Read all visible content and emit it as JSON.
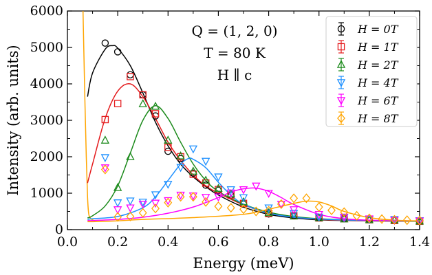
{
  "chart_data": {
    "type": "scatter",
    "title": "",
    "xlabel": "Energy (meV)",
    "ylabel": "Intensity (arb. units)",
    "xlim": [
      0.0,
      1.4
    ],
    "ylim": [
      0,
      6000
    ],
    "x_ticks": [
      0.0,
      0.2,
      0.4,
      0.6,
      0.8,
      1.0,
      1.2,
      1.4
    ],
    "x_tick_labels": [
      "0.0",
      "0.2",
      "0.4",
      "0.6",
      "0.8",
      "1.0",
      "1.2",
      "1.4"
    ],
    "y_ticks": [
      0,
      1000,
      2000,
      3000,
      4000,
      5000,
      6000
    ],
    "y_tick_labels": [
      "0",
      "1000",
      "2000",
      "3000",
      "4000",
      "5000",
      "6000"
    ],
    "grid": false,
    "legend_position": "top-right",
    "annotations": [
      "Q = (1, 2, 0)",
      "T = 80 K",
      "H ∥ c"
    ],
    "series": [
      {
        "name": "H = 0T",
        "color": "#000000",
        "marker": "circle",
        "points": [
          [
            0.15,
            5120
          ],
          [
            0.2,
            4880
          ],
          [
            0.25,
            4250
          ],
          [
            0.3,
            3700
          ],
          [
            0.35,
            3120
          ],
          [
            0.4,
            2150
          ],
          [
            0.45,
            1950
          ],
          [
            0.5,
            1550
          ],
          [
            0.55,
            1220
          ],
          [
            0.6,
            1080
          ],
          [
            0.65,
            950
          ],
          [
            0.7,
            700
          ],
          [
            0.8,
            430
          ],
          [
            0.9,
            380
          ],
          [
            1.0,
            330
          ],
          [
            1.1,
            300
          ],
          [
            1.2,
            280
          ],
          [
            1.3,
            250
          ],
          [
            1.4,
            230
          ]
        ],
        "fit": [
          [
            0.08,
            3650
          ],
          [
            0.1,
            4300
          ],
          [
            0.15,
            4950
          ],
          [
            0.18,
            5050
          ],
          [
            0.2,
            4980
          ],
          [
            0.25,
            4500
          ],
          [
            0.3,
            3750
          ],
          [
            0.35,
            2950
          ],
          [
            0.4,
            2300
          ],
          [
            0.45,
            1800
          ],
          [
            0.5,
            1450
          ],
          [
            0.55,
            1180
          ],
          [
            0.6,
            950
          ],
          [
            0.7,
            620
          ],
          [
            0.8,
            420
          ],
          [
            0.9,
            320
          ],
          [
            1.0,
            270
          ],
          [
            1.2,
            240
          ],
          [
            1.4,
            230
          ]
        ]
      },
      {
        "name": "H = 1T",
        "color": "#e41a1c",
        "marker": "square",
        "points": [
          [
            0.15,
            3020
          ],
          [
            0.2,
            3460
          ],
          [
            0.25,
            4200
          ],
          [
            0.3,
            3700
          ],
          [
            0.35,
            3180
          ],
          [
            0.4,
            2260
          ],
          [
            0.45,
            2000
          ],
          [
            0.5,
            1520
          ],
          [
            0.55,
            1280
          ],
          [
            0.6,
            1100
          ],
          [
            0.65,
            950
          ],
          [
            0.7,
            720
          ],
          [
            0.8,
            440
          ],
          [
            0.9,
            380
          ],
          [
            1.0,
            320
          ],
          [
            1.1,
            300
          ],
          [
            1.2,
            270
          ],
          [
            1.3,
            250
          ],
          [
            1.4,
            230
          ]
        ],
        "fit": [
          [
            0.08,
            1280
          ],
          [
            0.1,
            1800
          ],
          [
            0.15,
            3050
          ],
          [
            0.2,
            3800
          ],
          [
            0.25,
            4000
          ],
          [
            0.3,
            3650
          ],
          [
            0.35,
            3050
          ],
          [
            0.4,
            2400
          ],
          [
            0.45,
            1900
          ],
          [
            0.5,
            1500
          ],
          [
            0.55,
            1200
          ],
          [
            0.6,
            1000
          ],
          [
            0.7,
            680
          ],
          [
            0.8,
            450
          ],
          [
            0.9,
            340
          ],
          [
            1.0,
            280
          ],
          [
            1.2,
            240
          ],
          [
            1.4,
            230
          ]
        ]
      },
      {
        "name": "H = 2T",
        "color": "#1b8a1b",
        "marker": "triangle-up",
        "points": [
          [
            0.15,
            2450
          ],
          [
            0.2,
            1150
          ],
          [
            0.25,
            2000
          ],
          [
            0.3,
            3450
          ],
          [
            0.35,
            3380
          ],
          [
            0.4,
            2450
          ],
          [
            0.45,
            2020
          ],
          [
            0.5,
            1600
          ],
          [
            0.55,
            1350
          ],
          [
            0.6,
            1130
          ],
          [
            0.65,
            980
          ],
          [
            0.7,
            760
          ],
          [
            0.8,
            460
          ],
          [
            0.9,
            370
          ],
          [
            1.0,
            320
          ],
          [
            1.1,
            290
          ],
          [
            1.2,
            270
          ],
          [
            1.3,
            260
          ],
          [
            1.4,
            230
          ]
        ],
        "fit": [
          [
            0.08,
            320
          ],
          [
            0.1,
            380
          ],
          [
            0.15,
            650
          ],
          [
            0.2,
            1200
          ],
          [
            0.25,
            2100
          ],
          [
            0.3,
            3000
          ],
          [
            0.35,
            3400
          ],
          [
            0.4,
            3050
          ],
          [
            0.45,
            2400
          ],
          [
            0.5,
            1800
          ],
          [
            0.55,
            1350
          ],
          [
            0.6,
            1050
          ],
          [
            0.7,
            700
          ],
          [
            0.8,
            480
          ],
          [
            0.9,
            360
          ],
          [
            1.0,
            300
          ],
          [
            1.2,
            250
          ],
          [
            1.4,
            230
          ]
        ]
      },
      {
        "name": "H = 4T",
        "color": "#1e90ff",
        "marker": "triangle-down",
        "points": [
          [
            0.15,
            1980
          ],
          [
            0.2,
            740
          ],
          [
            0.25,
            790
          ],
          [
            0.3,
            760
          ],
          [
            0.35,
            960
          ],
          [
            0.4,
            1250
          ],
          [
            0.45,
            1710
          ],
          [
            0.5,
            2220
          ],
          [
            0.55,
            1880
          ],
          [
            0.6,
            1450
          ],
          [
            0.65,
            1100
          ],
          [
            0.7,
            880
          ],
          [
            0.8,
            600
          ],
          [
            0.9,
            450
          ],
          [
            1.0,
            350
          ],
          [
            1.1,
            330
          ],
          [
            1.2,
            280
          ],
          [
            1.3,
            280
          ],
          [
            1.4,
            250
          ]
        ],
        "fit": [
          [
            0.08,
            280
          ],
          [
            0.1,
            300
          ],
          [
            0.2,
            360
          ],
          [
            0.3,
            600
          ],
          [
            0.35,
            900
          ],
          [
            0.4,
            1350
          ],
          [
            0.45,
            1800
          ],
          [
            0.48,
            1950
          ],
          [
            0.5,
            1930
          ],
          [
            0.55,
            1700
          ],
          [
            0.6,
            1300
          ],
          [
            0.65,
            950
          ],
          [
            0.7,
            700
          ],
          [
            0.8,
            450
          ],
          [
            0.9,
            340
          ],
          [
            1.0,
            290
          ],
          [
            1.2,
            250
          ],
          [
            1.4,
            240
          ]
        ]
      },
      {
        "name": "H = 6T",
        "color": "#ff00ff",
        "marker": "triangle-down",
        "points": [
          [
            0.15,
            1700
          ],
          [
            0.2,
            550
          ],
          [
            0.25,
            600
          ],
          [
            0.3,
            700
          ],
          [
            0.35,
            730
          ],
          [
            0.4,
            800
          ],
          [
            0.45,
            950
          ],
          [
            0.5,
            930
          ],
          [
            0.55,
            890
          ],
          [
            0.6,
            900
          ],
          [
            0.65,
            1010
          ],
          [
            0.7,
            1100
          ],
          [
            0.75,
            1200
          ],
          [
            0.8,
            1000
          ],
          [
            0.85,
            700
          ],
          [
            0.9,
            550
          ],
          [
            1.0,
            420
          ],
          [
            1.1,
            350
          ],
          [
            1.2,
            300
          ],
          [
            1.3,
            260
          ],
          [
            1.4,
            240
          ]
        ],
        "fit": [
          [
            0.08,
            250
          ],
          [
            0.1,
            250
          ],
          [
            0.2,
            280
          ],
          [
            0.3,
            340
          ],
          [
            0.4,
            450
          ],
          [
            0.5,
            620
          ],
          [
            0.6,
            880
          ],
          [
            0.65,
            1030
          ],
          [
            0.7,
            1120
          ],
          [
            0.75,
            1140
          ],
          [
            0.8,
            1050
          ],
          [
            0.85,
            880
          ],
          [
            0.9,
            690
          ],
          [
            1.0,
            420
          ],
          [
            1.1,
            300
          ],
          [
            1.2,
            260
          ],
          [
            1.4,
            240
          ]
        ]
      },
      {
        "name": "H = 8T",
        "color": "#ffa500",
        "marker": "diamond",
        "points": [
          [
            0.15,
            1650
          ],
          [
            0.2,
            350
          ],
          [
            0.25,
            360
          ],
          [
            0.3,
            460
          ],
          [
            0.35,
            580
          ],
          [
            0.4,
            740
          ],
          [
            0.45,
            900
          ],
          [
            0.5,
            900
          ],
          [
            0.55,
            760
          ],
          [
            0.6,
            640
          ],
          [
            0.65,
            600
          ],
          [
            0.7,
            560
          ],
          [
            0.75,
            500
          ],
          [
            0.8,
            520
          ],
          [
            0.85,
            700
          ],
          [
            0.9,
            860
          ],
          [
            0.95,
            860
          ],
          [
            1.0,
            620
          ],
          [
            1.05,
            530
          ],
          [
            1.1,
            480
          ],
          [
            1.15,
            380
          ],
          [
            1.2,
            310
          ],
          [
            1.25,
            290
          ],
          [
            1.3,
            270
          ],
          [
            1.35,
            260
          ],
          [
            1.4,
            250
          ]
        ],
        "fit": [
          [
            0.08,
            220
          ],
          [
            0.1,
            220
          ],
          [
            0.2,
            240
          ],
          [
            0.3,
            280
          ],
          [
            0.5,
            330
          ],
          [
            0.7,
            420
          ],
          [
            0.8,
            560
          ],
          [
            0.9,
            720
          ],
          [
            0.95,
            780
          ],
          [
            1.0,
            760
          ],
          [
            1.05,
            650
          ],
          [
            1.1,
            500
          ],
          [
            1.2,
            330
          ],
          [
            1.3,
            260
          ],
          [
            1.4,
            240
          ]
        ]
      }
    ],
    "divergence_curve": {
      "color": "#ffa500",
      "points": [
        [
          0.062,
          6000
        ],
        [
          0.065,
          5000
        ],
        [
          0.07,
          3400
        ],
        [
          0.075,
          2000
        ],
        [
          0.08,
          900
        ],
        [
          0.085,
          420
        ],
        [
          0.095,
          290
        ],
        [
          0.11,
          240
        ]
      ]
    }
  },
  "legend": {
    "items": [
      {
        "label": "H = 0T",
        "color": "#000000",
        "marker": "circle"
      },
      {
        "label": "H = 1T",
        "color": "#e41a1c",
        "marker": "square"
      },
      {
        "label": "H = 2T",
        "color": "#1b8a1b",
        "marker": "triangle-up"
      },
      {
        "label": "H = 4T",
        "color": "#1e90ff",
        "marker": "triangle-down"
      },
      {
        "label": "H = 6T",
        "color": "#ff00ff",
        "marker": "triangle-down"
      },
      {
        "label": "H = 8T",
        "color": "#ffa500",
        "marker": "diamond"
      }
    ]
  },
  "annotation": {
    "line1": "Q = (1, 2, 0)",
    "line2": "T = 80 K",
    "line3": "H ∥ c"
  }
}
